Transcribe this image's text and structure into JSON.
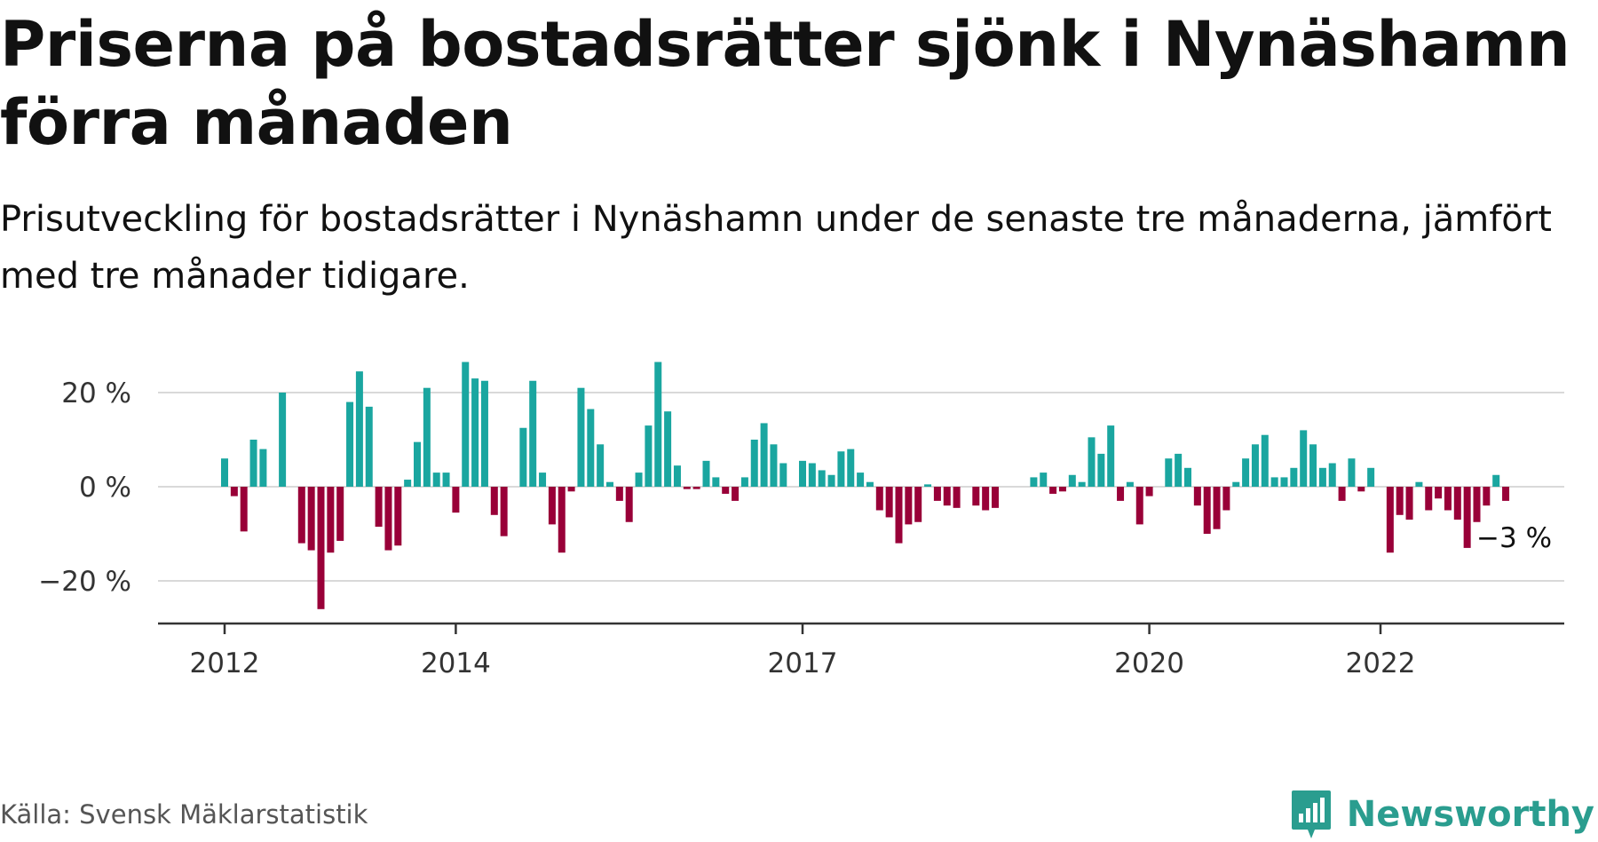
{
  "header": {
    "title": "Priserna på bostadsrätter sjönk i Nynäshamn förra månaden",
    "subtitle": "Prisutveckling för bostadsrätter i Nynäshamn under de senaste tre månaderna, jämfört med tre månader tidigare."
  },
  "footer": {
    "source": "Källa: Svensk Mäklarstatistik",
    "brand": "Newsworthy"
  },
  "colors": {
    "positive": "#1aa6a0",
    "negative": "#990038",
    "grid": "#d9d9d9",
    "axis": "#333333",
    "brand": "#2a9d8f"
  },
  "icons": {
    "brand_logo": "newsworthy-logo-icon"
  },
  "chart_data": {
    "type": "bar",
    "title": "Priserna på bostadsrätter sjönk i Nynäshamn förra månaden",
    "subtitle": "Prisutveckling för bostadsrätter i Nynäshamn under de senaste tre månaderna, jämfört med tre månader tidigare.",
    "start": "2012-01",
    "x_ticks": [
      "2012",
      "2014",
      "2017",
      "2020",
      "2022"
    ],
    "y_ticks": [
      {
        "value": 20,
        "label": "20 %"
      },
      {
        "value": 0,
        "label": "0 %"
      },
      {
        "value": -20,
        "label": "−20 %"
      }
    ],
    "ylim": [
      -30,
      30
    ],
    "grid": true,
    "annotation": {
      "label": "−3 %",
      "value": -3
    },
    "values": [
      6,
      -2,
      -9.5,
      10,
      8,
      0,
      20,
      0,
      -12,
      -13.5,
      -26,
      -14,
      -11.5,
      18,
      24.5,
      17,
      -8.5,
      -13.5,
      -12.5,
      1.5,
      9.5,
      21,
      3,
      3,
      -5.5,
      26.5,
      23,
      22.5,
      -6,
      -10.5,
      0,
      12.5,
      22.5,
      3,
      -8,
      -14,
      -1,
      21,
      16.5,
      9,
      1,
      -3,
      -7.5,
      3,
      13,
      26.5,
      16,
      4.5,
      -0.5,
      -0.5,
      5.5,
      2,
      -1.5,
      -3,
      2,
      10,
      13.5,
      9,
      5,
      0,
      5.5,
      5,
      3.5,
      2.5,
      7.5,
      8,
      3,
      1,
      -5,
      -6.5,
      -12,
      -8,
      -7.5,
      0.5,
      -3,
      -4,
      -4.5,
      0,
      -4,
      -5,
      -4.5,
      0,
      0,
      0,
      2,
      3,
      -1.5,
      -1,
      2.5,
      1,
      10.5,
      7,
      13,
      -3,
      1,
      -8,
      -2,
      0,
      6,
      7,
      4,
      -4,
      -10,
      -9,
      -5,
      1,
      6,
      9,
      11,
      2,
      2,
      4,
      12,
      9,
      4,
      5,
      -3,
      6,
      -1,
      4,
      0,
      -14,
      -6,
      -7,
      1,
      -5,
      -2.5,
      -5,
      -7,
      -13,
      -7.5,
      -4,
      2.5,
      -3
    ]
  }
}
